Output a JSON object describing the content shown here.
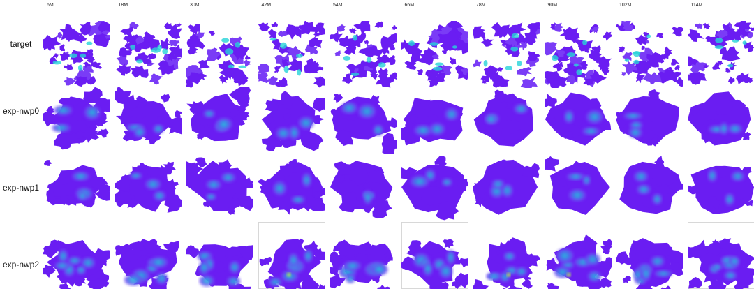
{
  "column_labels": [
    "6M",
    "18M",
    "30M",
    "42M",
    "54M",
    "66M",
    "78M",
    "90M",
    "102M",
    "114M"
  ],
  "row_labels": [
    "target",
    "exp-nwp0",
    "exp-nwp1",
    "exp-nwp2"
  ],
  "colors": {
    "background": "#ffffff",
    "low": "#6a1df2",
    "mid": "#7a3cf6",
    "high_blue": "#3a7fe8",
    "high_cyan": "#27d3d8",
    "peak_green": "#b7e94a"
  }
}
